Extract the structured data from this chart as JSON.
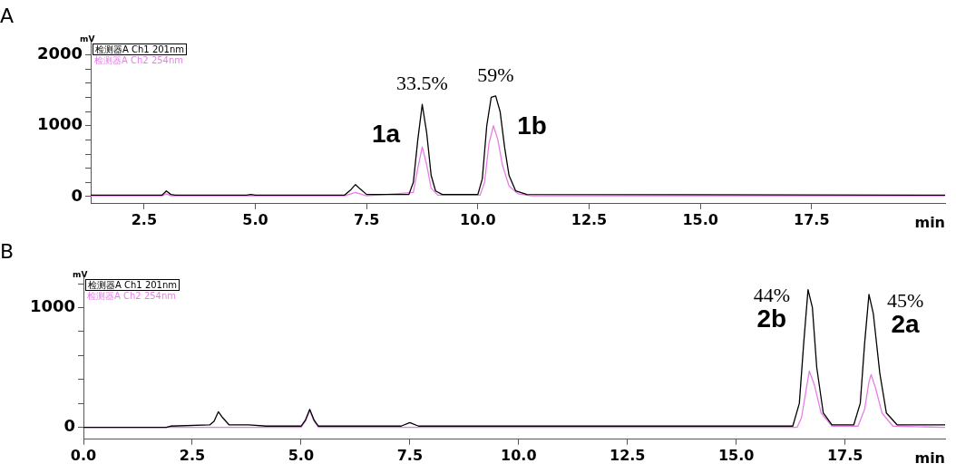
{
  "chart_data": [
    {
      "type": "line",
      "title": "A",
      "xlabel": "min",
      "ylabel": "mV",
      "legend": "top left",
      "xlim": [
        1.3,
        20.5
      ],
      "ylim": [
        -100,
        2180
      ],
      "xticks": [
        {
          "value": 2.5,
          "label": "2.5"
        },
        {
          "value": 5,
          "label": "5.0"
        },
        {
          "value": 7.5,
          "label": "7.5"
        },
        {
          "value": 10,
          "label": "10.0"
        },
        {
          "value": 12.5,
          "label": "12.5"
        },
        {
          "value": 15,
          "label": "15.0"
        },
        {
          "value": 17.5,
          "label": "17.5"
        }
      ],
      "yticks": [
        0,
        {
          "value": 200,
          "label": null
        },
        {
          "value": 400,
          "label": null
        },
        {
          "value": 600,
          "label": null
        },
        {
          "value": 800,
          "label": null
        },
        1000,
        {
          "value": 1200,
          "label": null
        },
        {
          "value": 1400,
          "label": null
        },
        {
          "value": 1600,
          "label": null
        },
        {
          "value": 1800,
          "label": null
        },
        2000
      ],
      "series": [
        {
          "name": "检测器A Ch1 201nm",
          "color": "#000000",
          "x": [
            1.3,
            2.9,
            3.0,
            3.1,
            3.2,
            4.8,
            4.9,
            5.0,
            7.0,
            7.15,
            7.25,
            7.35,
            7.5,
            8.45,
            8.55,
            8.65,
            8.75,
            8.85,
            8.95,
            9.05,
            9.2,
            10.0,
            10.1,
            10.2,
            10.3,
            10.4,
            10.5,
            10.6,
            10.7,
            10.85,
            11.1,
            20.5
          ],
          "values": [
            20,
            20,
            80,
            30,
            20,
            20,
            30,
            20,
            20,
            100,
            170,
            110,
            30,
            30,
            200,
            800,
            1300,
            900,
            300,
            80,
            30,
            30,
            250,
            1000,
            1400,
            1420,
            1200,
            700,
            300,
            80,
            30,
            20
          ]
        },
        {
          "name": "检测器A Ch2 254nm",
          "color": "#e87ee8",
          "x": [
            1.3,
            2.9,
            3.0,
            3.1,
            7.0,
            7.25,
            7.5,
            8.55,
            8.65,
            8.75,
            8.85,
            8.95,
            9.1,
            10.05,
            10.15,
            10.25,
            10.35,
            10.45,
            10.55,
            10.7,
            10.9,
            11.2,
            20.5
          ],
          "values": [
            10,
            10,
            40,
            10,
            10,
            60,
            10,
            60,
            400,
            700,
            450,
            120,
            20,
            20,
            200,
            750,
            1000,
            800,
            450,
            150,
            40,
            10,
            10
          ]
        }
      ],
      "annotations": [
        {
          "text": "33.5%",
          "x": 8.75,
          "y": 1300
        },
        {
          "text": "1a",
          "x": 8.75,
          "y": 1300
        },
        {
          "text": "59%",
          "x": 10.4,
          "y": 1420
        },
        {
          "text": "1b",
          "x": 10.4,
          "y": 1420
        }
      ]
    },
    {
      "type": "line",
      "title": "B",
      "xlabel": "min",
      "ylabel": "mV",
      "legend": "top left",
      "xlim": [
        0,
        19.8
      ],
      "ylim": [
        -100,
        1250
      ],
      "xticks": [
        {
          "value": 0,
          "label": "0.0"
        },
        {
          "value": 2.5,
          "label": "2.5"
        },
        {
          "value": 5,
          "label": "5.0"
        },
        {
          "value": 7.5,
          "label": "7.5"
        },
        {
          "value": 10,
          "label": "10.0"
        },
        {
          "value": 12.5,
          "label": "12.5"
        },
        {
          "value": 15,
          "label": "15.0"
        },
        {
          "value": 17.5,
          "label": "17.5"
        }
      ],
      "yticks": [
        0,
        {
          "value": 200,
          "label": null
        },
        {
          "value": 400,
          "label": null
        },
        {
          "value": 600,
          "label": null
        },
        {
          "value": 800,
          "label": null
        },
        1000,
        {
          "value": 1200,
          "label": null
        }
      ],
      "series": [
        {
          "name": "检测器A Ch1 201nm",
          "color": "#000000",
          "x": [
            0,
            1.9,
            2.0,
            2.9,
            3.0,
            3.1,
            3.2,
            3.35,
            3.8,
            4.2,
            5.0,
            5.1,
            5.2,
            5.3,
            5.4,
            7.3,
            7.5,
            7.7,
            16.3,
            16.45,
            16.55,
            16.65,
            16.75,
            16.85,
            17.0,
            17.2,
            17.7,
            17.85,
            17.95,
            18.05,
            18.15,
            18.3,
            18.45,
            18.7,
            19.8
          ],
          "values": [
            0,
            0,
            10,
            20,
            50,
            130,
            80,
            20,
            20,
            10,
            10,
            60,
            150,
            60,
            10,
            10,
            40,
            10,
            10,
            200,
            700,
            1150,
            1000,
            500,
            120,
            20,
            20,
            200,
            700,
            1110,
            950,
            450,
            120,
            20,
            20
          ]
        },
        {
          "name": "检测器A Ch2 254nm",
          "color": "#e87ee8",
          "x": [
            0,
            1.9,
            2.0,
            5.0,
            5.1,
            5.2,
            5.3,
            5.4,
            16.4,
            16.5,
            16.6,
            16.68,
            16.8,
            16.95,
            17.2,
            17.8,
            17.95,
            18.05,
            18.1,
            18.2,
            18.35,
            18.6,
            19.8
          ],
          "values": [
            0,
            0,
            0,
            0,
            50,
            140,
            50,
            0,
            0,
            80,
            300,
            470,
            350,
            120,
            10,
            10,
            150,
            380,
            440,
            330,
            120,
            10,
            0
          ]
        }
      ],
      "annotations": [
        {
          "text": "44%",
          "x": 16.65,
          "y": 1150
        },
        {
          "text": "2b",
          "x": 16.65,
          "y": 1150
        },
        {
          "text": "45%",
          "x": 18.05,
          "y": 1110
        },
        {
          "text": "2a",
          "x": 18.05,
          "y": 1110
        }
      ]
    }
  ]
}
